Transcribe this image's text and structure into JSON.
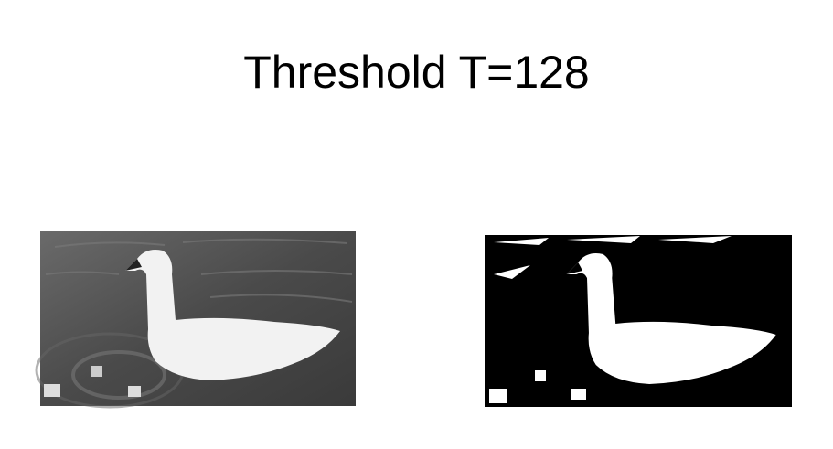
{
  "title": "Threshold T=128"
}
